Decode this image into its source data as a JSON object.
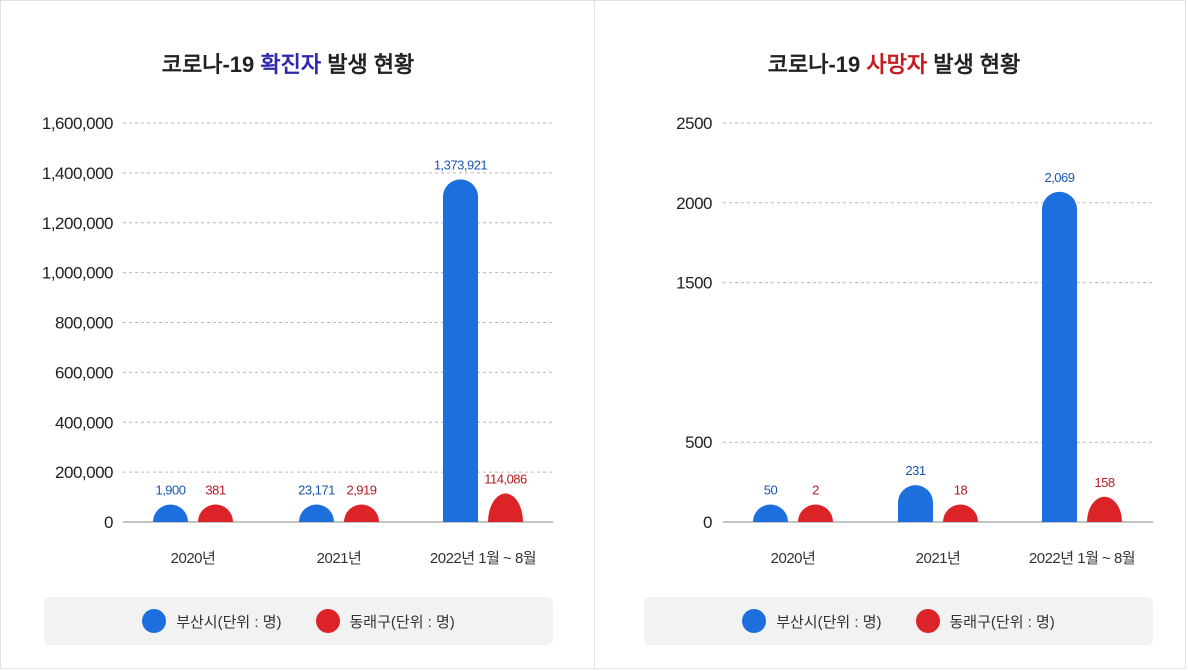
{
  "colors": {
    "busan": "#1c6fdc",
    "dongnae": "#dc2328",
    "title": "#222222",
    "title_accent_confirmed": "#2e2ab0",
    "title_accent_death": "#c41c20"
  },
  "legend": [
    {
      "label": "부산시(단위 : 명)",
      "color_key": "busan"
    },
    {
      "label": "동래구(단위 : 명)",
      "color_key": "dongnae"
    }
  ],
  "chart_data": [
    {
      "type": "bar",
      "title": "코로나-19 확진자 발생 현황",
      "title_parts": {
        "prefix": "코로나-19 ",
        "accent": "확진자",
        "suffix": " 발생 현황"
      },
      "accent_color_key": "title_accent_confirmed",
      "categories": [
        "2020년",
        "2021년",
        "2022년 1월 ~ 8월"
      ],
      "series": [
        {
          "name": "부산시(단위 : 명)",
          "color_key": "busan",
          "values": [
            1900,
            23171,
            1373921
          ],
          "labels": [
            "1,900",
            "23,171",
            "1,373,921"
          ]
        },
        {
          "name": "동래구(단위 : 명)",
          "color_key": "dongnae",
          "values": [
            381,
            2919,
            114086
          ],
          "labels": [
            "381",
            "2,919",
            "114,086"
          ]
        }
      ],
      "ylim": [
        0,
        1600000
      ],
      "yticks": [
        0,
        200000,
        400000,
        600000,
        800000,
        1000000,
        1200000,
        1400000,
        1600000
      ],
      "ytick_labels": [
        "0",
        "200,000",
        "400,000",
        "600,000",
        "800,000",
        "1,000,000",
        "1,200,000",
        "1,400,000",
        "1,600,000"
      ],
      "grid": true,
      "legend_position": "bottom"
    },
    {
      "type": "bar",
      "title": "코로나-19 사망자 발생 현황",
      "title_parts": {
        "prefix": "코로나-19 ",
        "accent": "사망자",
        "suffix": " 발생 현황"
      },
      "accent_color_key": "title_accent_death",
      "categories": [
        "2020년",
        "2021년",
        "2022년 1월 ~ 8월"
      ],
      "series": [
        {
          "name": "부산시(단위 : 명)",
          "color_key": "busan",
          "values": [
            50,
            231,
            2069
          ],
          "labels": [
            "50",
            "231",
            "2,069"
          ]
        },
        {
          "name": "동래구(단위 : 명)",
          "color_key": "dongnae",
          "values": [
            2,
            18,
            158
          ],
          "labels": [
            "2",
            "18",
            "158"
          ]
        }
      ],
      "ylim": [
        0,
        2500
      ],
      "yticks": [
        0,
        500,
        1500,
        2000,
        2500
      ],
      "ytick_labels": [
        "0",
        "500",
        "1500",
        "2000",
        "2500"
      ],
      "grid": true,
      "legend_position": "bottom"
    }
  ]
}
